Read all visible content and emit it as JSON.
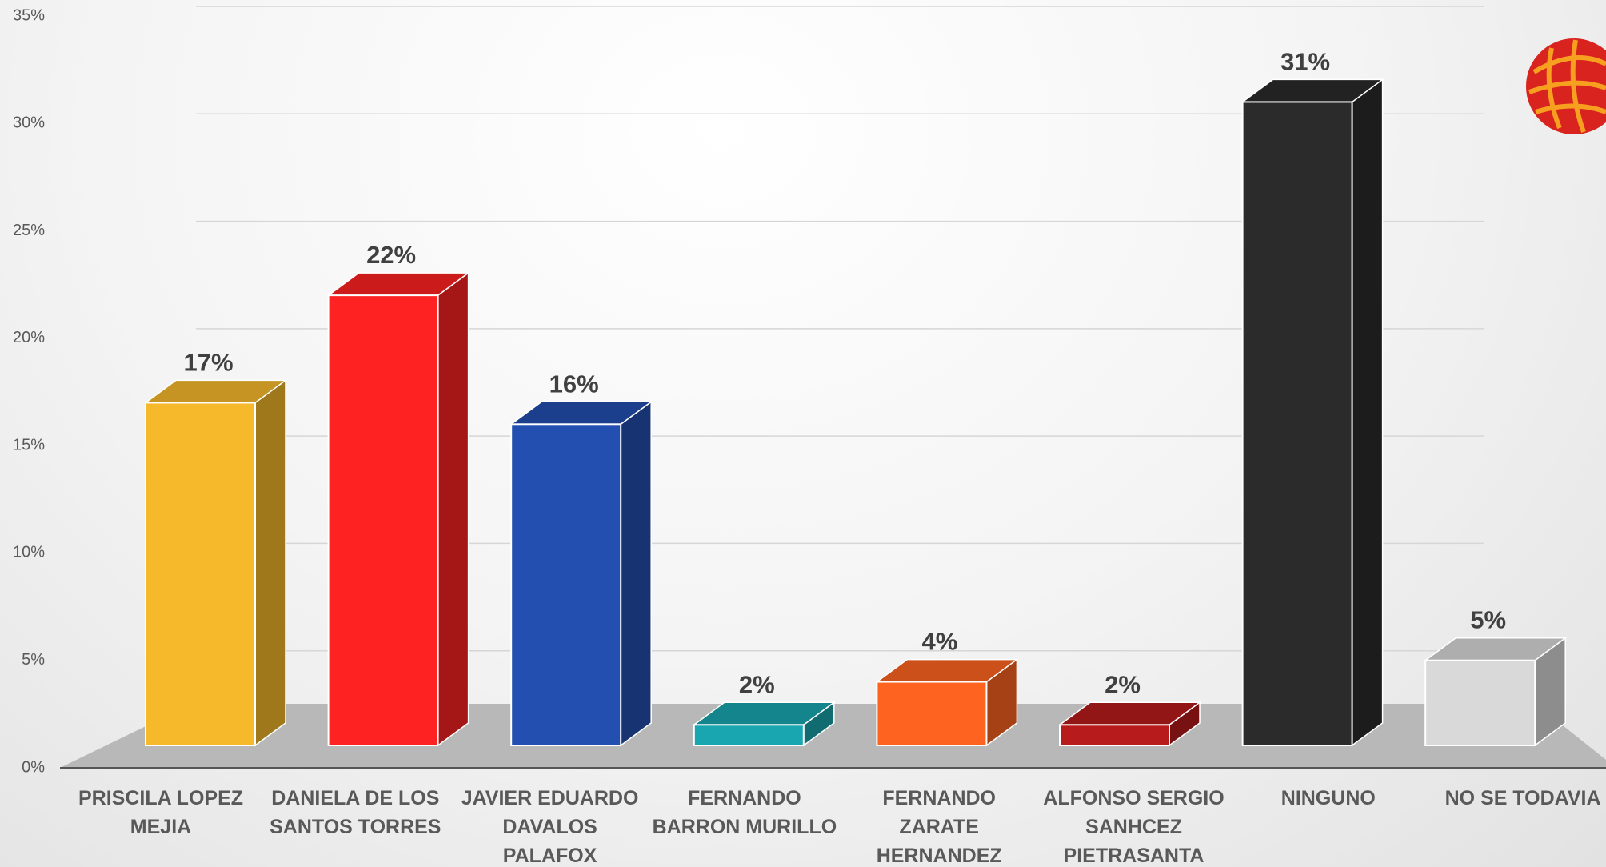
{
  "chart_data": {
    "type": "bar",
    "categories": [
      "PRISCILA LOPEZ MEJIA",
      "DANIELA DE LOS SANTOS TORRES",
      "JAVIER EDUARDO DAVALOS PALAFOX",
      "FERNANDO BARRON MURILLO",
      "FERNANDO ZARATE HERNANDEZ",
      "ALFONSO SERGIO SANHCEZ PIETRASANTA",
      "NINGUNO",
      "NO SE TODAVIA"
    ],
    "values": [
      17,
      22,
      16,
      2,
      4,
      2,
      31,
      5
    ],
    "value_labels": [
      "17%",
      "22%",
      "16%",
      "2%",
      "4%",
      "2%",
      "31%",
      "5%"
    ],
    "colors": [
      "#f6b92b",
      "#fe2222",
      "#234fb0",
      "#1aa6b0",
      "#fe6420",
      "#b81b1b",
      "#2b2b2b",
      "#d9d9d9"
    ],
    "ylim": [
      0,
      35
    ],
    "yticks": [
      {
        "value": 0,
        "label": "0%"
      },
      {
        "value": 5,
        "label": "5%"
      },
      {
        "value": 10,
        "label": "10%"
      },
      {
        "value": 15,
        "label": "15%"
      },
      {
        "value": 20,
        "label": "20%"
      },
      {
        "value": 25,
        "label": "25%"
      },
      {
        "value": 30,
        "label": "30%"
      },
      {
        "value": 35,
        "label": "35%"
      }
    ],
    "grid": true
  }
}
